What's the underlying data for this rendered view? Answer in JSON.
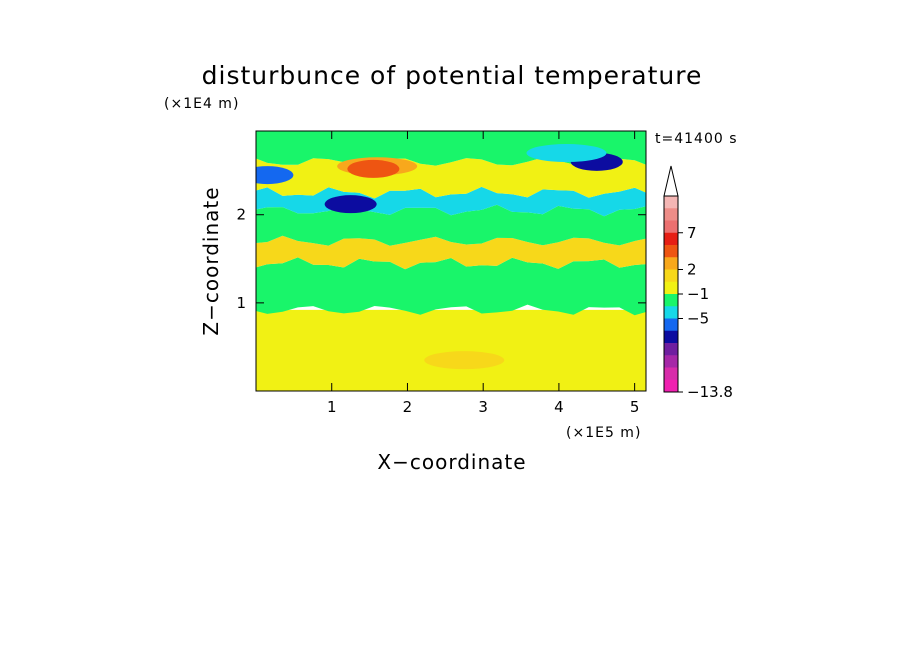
{
  "chart_data": {
    "type": "heatmap",
    "title": "disturbunce of potential temperature",
    "xlabel": "X−coordinate",
    "ylabel": "Z−coordinate",
    "x_unit": "(×1E5 m)",
    "y_unit": "(×1E4 m)",
    "time_label": "t=41400 s",
    "xlim": [
      0,
      5.15
    ],
    "ylim": [
      0,
      2.95
    ],
    "x_ticks": [
      "1",
      "2",
      "3",
      "4",
      "5"
    ],
    "y_ticks": [
      "1",
      "2"
    ],
    "colorbar": {
      "labels": [
        "7",
        "2",
        "−1",
        "−5",
        "−13.8"
      ],
      "colors": [
        "#f4b6b4",
        "#ee8d88",
        "#ec7070",
        "#e61e14",
        "#ee5512",
        "#f8a81c",
        "#f7d81a",
        "#f1f114",
        "#19f56a",
        "#16d8e8",
        "#1468f0",
        "#0c0ca0",
        "#6f1fa0",
        "#a628a8",
        "#d82caa",
        "#f020b0"
      ]
    },
    "bands": [
      {
        "z": [
          0.0,
          0.92
        ],
        "value": 1.5,
        "color": "#f1f114"
      },
      {
        "z": [
          0.92,
          1.45
        ],
        "value": -0.5,
        "color": "#19f56a"
      },
      {
        "z": [
          1.45,
          1.7
        ],
        "value": 1.0,
        "color": "#f7d81a"
      },
      {
        "z": [
          1.7,
          2.05
        ],
        "value": -0.5,
        "color": "#19f56a"
      },
      {
        "z": [
          2.05,
          2.25
        ],
        "value": -1.5,
        "color": "#16d8e8"
      },
      {
        "z": [
          2.25,
          2.6
        ],
        "value": 1.5,
        "color": "#f1f114"
      },
      {
        "z": [
          2.6,
          2.95
        ],
        "value": 0.5,
        "color": "#19f56a"
      }
    ],
    "features": [
      {
        "x": 1.6,
        "z": 2.55,
        "value": 4,
        "color": "#f8a81c"
      },
      {
        "x": 1.55,
        "z": 2.52,
        "value": 6,
        "color": "#ee5512"
      },
      {
        "x": 0.15,
        "z": 2.45,
        "value": -5,
        "color": "#1468f0"
      },
      {
        "x": 1.25,
        "z": 2.12,
        "value": -6,
        "color": "#0c0ca0"
      },
      {
        "x": 4.5,
        "z": 2.6,
        "value": -6,
        "color": "#0c0ca0"
      },
      {
        "x": 4.1,
        "z": 2.7,
        "value": -2,
        "color": "#16d8e8"
      },
      {
        "x": 2.75,
        "z": 0.35,
        "value": 1,
        "color": "#f7d81a"
      }
    ]
  }
}
